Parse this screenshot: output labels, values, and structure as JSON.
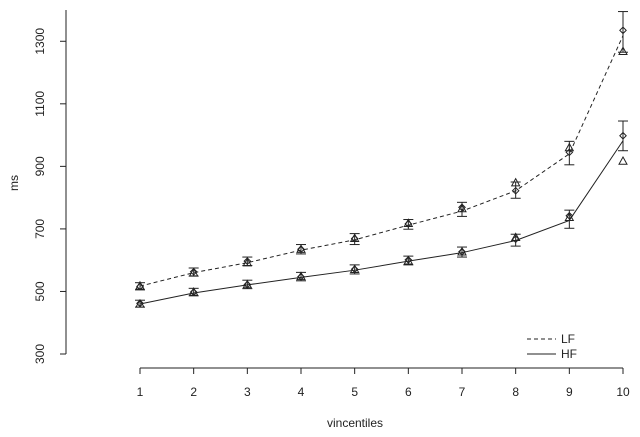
{
  "chart_data": {
    "type": "line",
    "xlabel": "vincentiles",
    "ylabel": "ms",
    "x": [
      1,
      2,
      3,
      4,
      5,
      6,
      7,
      8,
      9,
      10
    ],
    "xlim": [
      1,
      10
    ],
    "ylim": [
      300,
      1400
    ],
    "yticks": [
      300,
      500,
      700,
      900,
      1100,
      1300
    ],
    "grid": false,
    "legend_position": "bottom-right",
    "series": [
      {
        "name": "LF",
        "line_style": "dashed",
        "line": [
          517,
          560,
          592,
          632,
          665,
          712,
          757,
          822,
          940,
          1318
        ],
        "diamond": [
          516,
          563,
          597,
          635,
          669,
          716,
          769,
          822,
          945,
          1335
        ],
        "triangle": [
          518,
          560,
          592,
          635,
          670,
          718,
          765,
          848,
          960,
          1268
        ],
        "error_low": [
          505,
          549,
          583,
          620,
          650,
          699,
          740,
          798,
          905,
          1265
        ],
        "error_high": [
          528,
          575,
          610,
          650,
          685,
          730,
          785,
          850,
          980,
          1395
        ]
      },
      {
        "name": "HF",
        "line_style": "solid",
        "line": [
          460,
          495,
          521,
          545,
          568,
          597,
          624,
          663,
          727,
          982
        ],
        "diamond": [
          462,
          498,
          522,
          547,
          571,
          601,
          627,
          667,
          742,
          998
        ],
        "triangle": [
          460,
          498,
          522,
          548,
          571,
          598,
          627,
          673,
          737,
          917
        ],
        "error_low": [
          450,
          486,
          509,
          534,
          556,
          585,
          610,
          645,
          702,
          950
        ],
        "error_high": [
          472,
          510,
          536,
          561,
          585,
          613,
          642,
          683,
          760,
          1045
        ]
      }
    ]
  }
}
